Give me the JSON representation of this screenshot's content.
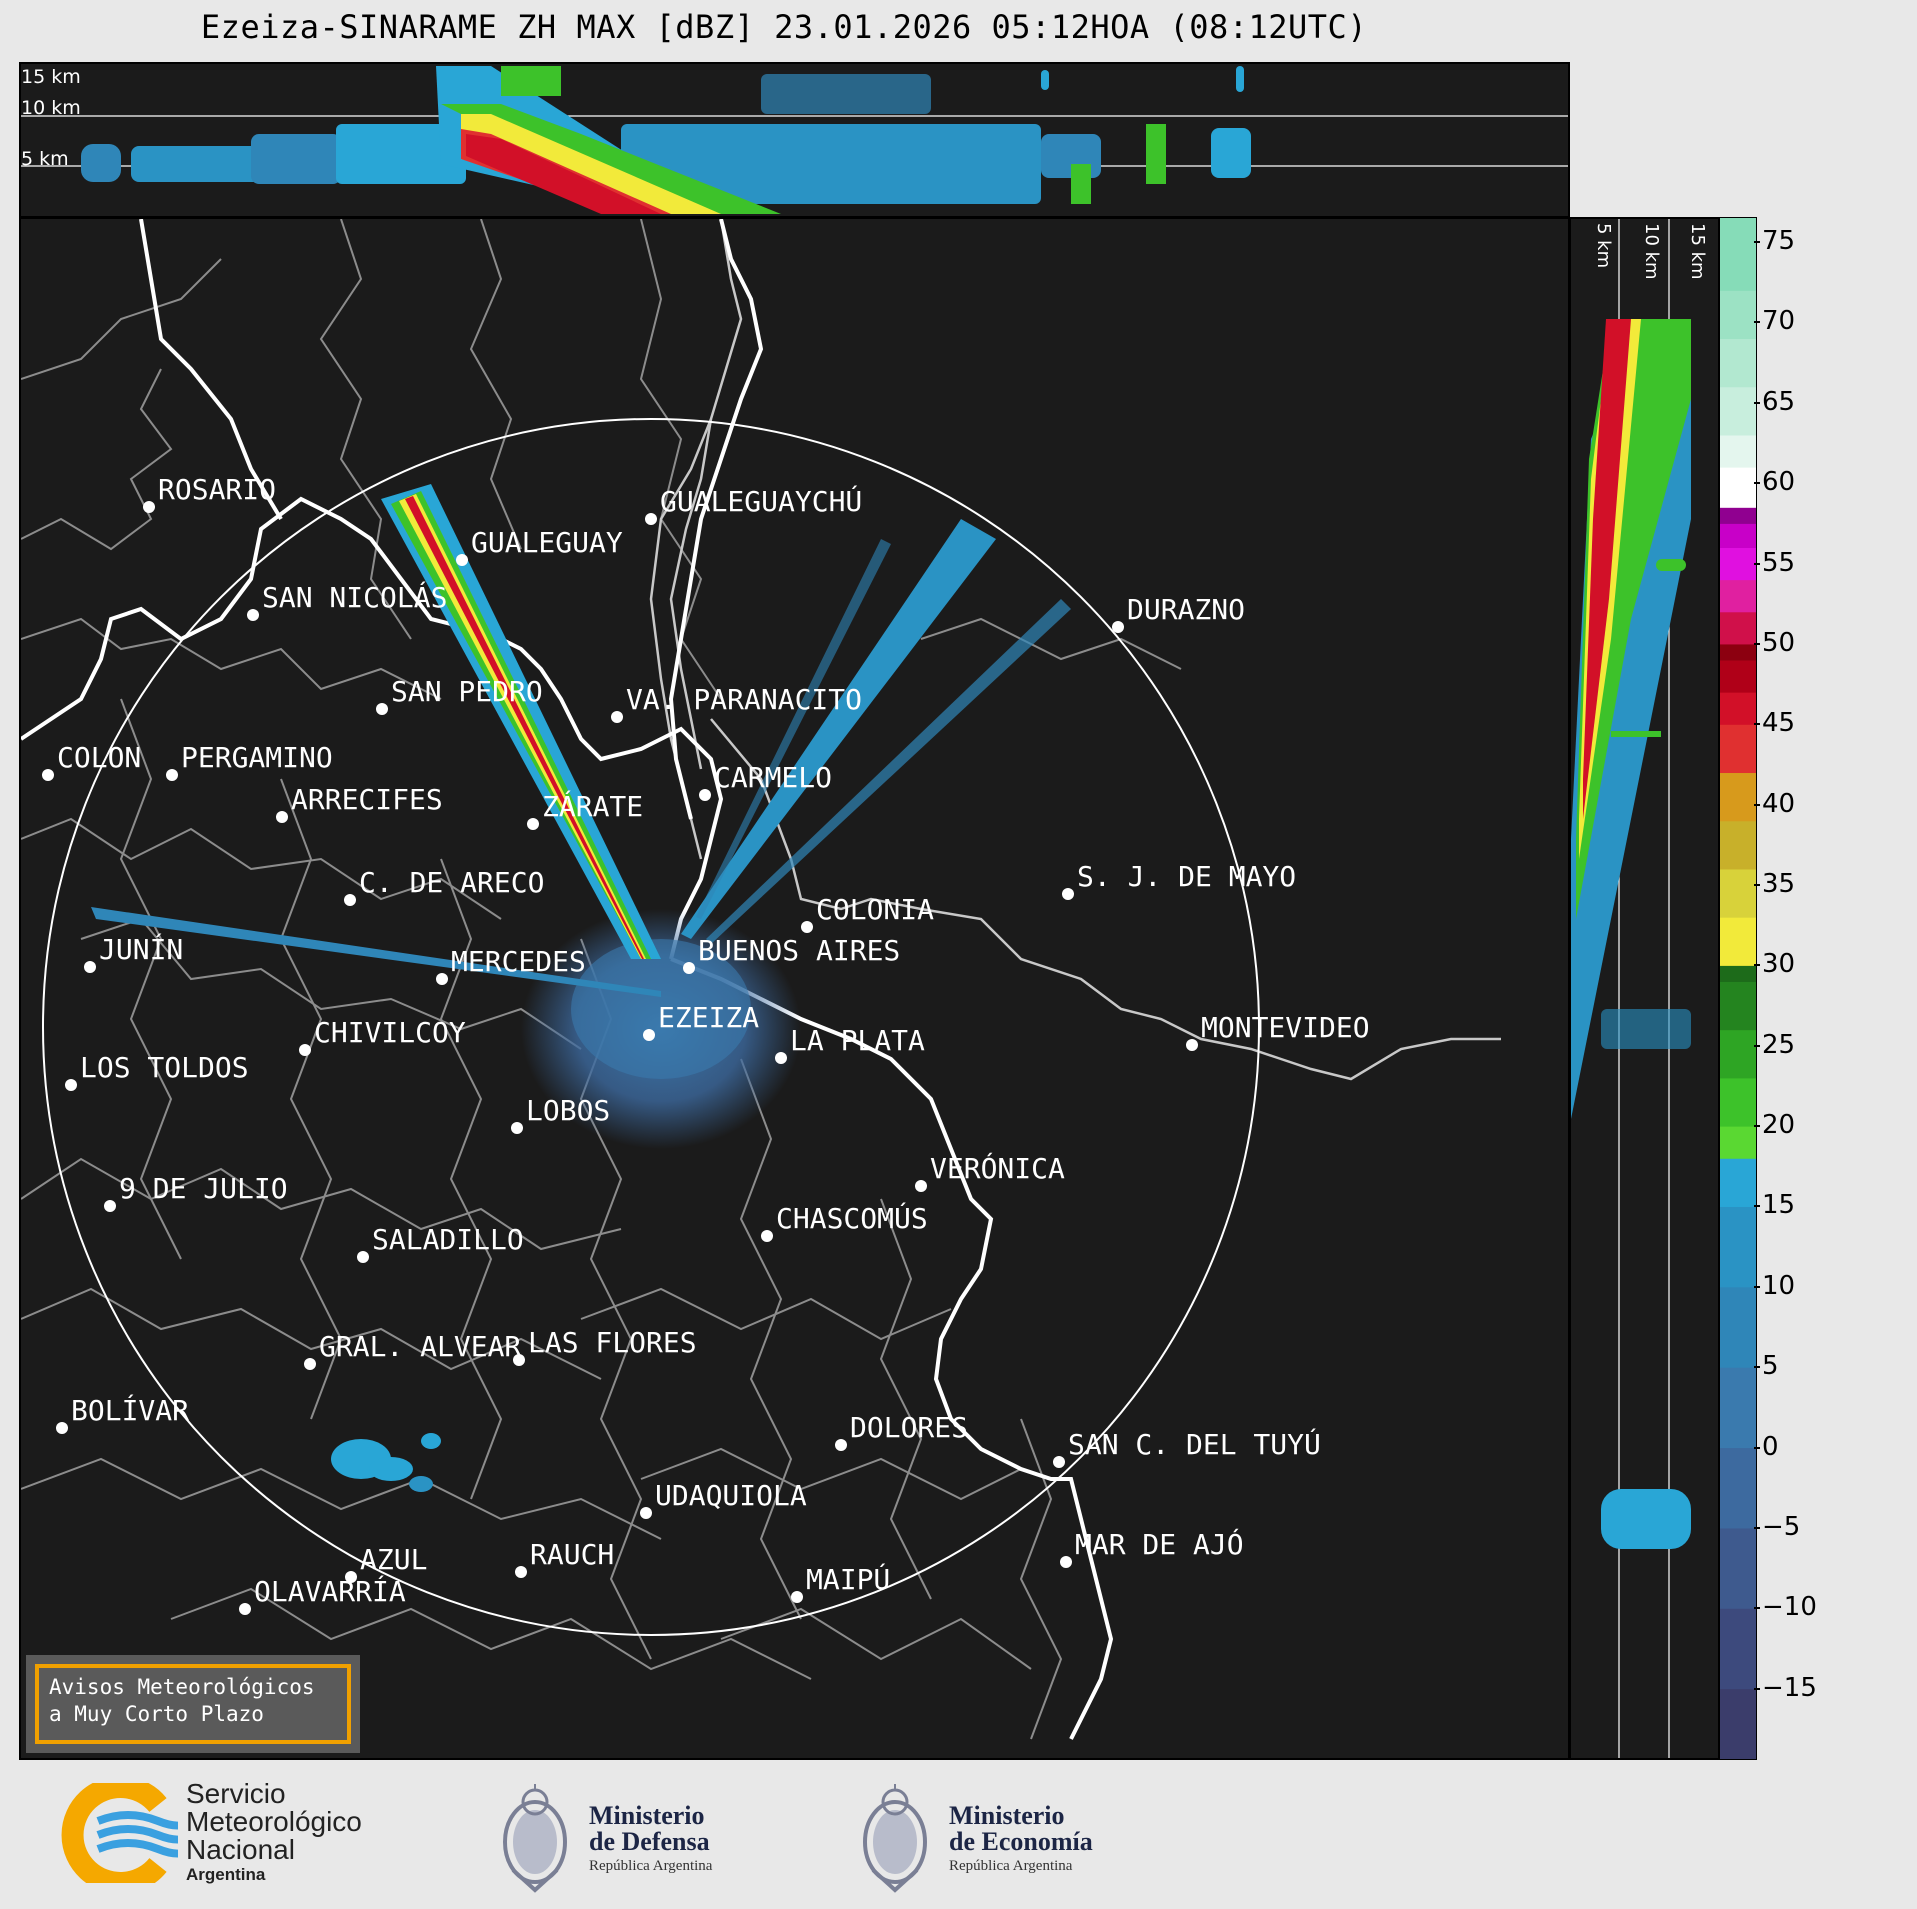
{
  "title": "Ezeiza-SINARAME ZH MAX [dBZ] 23.01.2026 05:12HOA (08:12UTC)",
  "top_panel": {
    "altitude_labels": [
      "15 km",
      "10 km",
      "5 km"
    ]
  },
  "side_panel": {
    "altitude_labels": [
      "5 km",
      "10 km",
      "15 km"
    ]
  },
  "cities": [
    {
      "name": "ROSARIO"
    },
    {
      "name": "GUALEGUAYCHÚ"
    },
    {
      "name": "GUALEGUAY"
    },
    {
      "name": "SAN NICOLÁS"
    },
    {
      "name": "DURAZNO"
    },
    {
      "name": "SAN PEDRO"
    },
    {
      "name": "VA. PARANACITO"
    },
    {
      "name": "COLON"
    },
    {
      "name": "PERGAMINO"
    },
    {
      "name": "ARRECIFES"
    },
    {
      "name": "ZÁRATE"
    },
    {
      "name": "CARMELO"
    },
    {
      "name": "C. DE ARECO"
    },
    {
      "name": "S. J. DE MAYO"
    },
    {
      "name": "COLONIA"
    },
    {
      "name": "JUNÍN"
    },
    {
      "name": "MERCEDES"
    },
    {
      "name": "BUENOS AIRES"
    },
    {
      "name": "EZEIZA"
    },
    {
      "name": "CHIVILCOY"
    },
    {
      "name": "LA PLATA"
    },
    {
      "name": "MONTEVIDEO"
    },
    {
      "name": "LOS TOLDOS"
    },
    {
      "name": "LOBOS"
    },
    {
      "name": "VERÓNICA"
    },
    {
      "name": "9 DE JULIO"
    },
    {
      "name": "CHASCOMÚS"
    },
    {
      "name": "SALADILLO"
    },
    {
      "name": "GRAL. ALVEAR"
    },
    {
      "name": "LAS FLORES"
    },
    {
      "name": "BOLÍVAR"
    },
    {
      "name": "DOLORES"
    },
    {
      "name": "SAN C. DEL TUYÚ"
    },
    {
      "name": "UDAQUIOLA"
    },
    {
      "name": "MAR DE AJÓ"
    },
    {
      "name": "AZUL"
    },
    {
      "name": "RAUCH"
    },
    {
      "name": "MAIPÚ"
    },
    {
      "name": "OLAVARRÍA"
    }
  ],
  "notice": {
    "line1": "Avisos Meteorológicos",
    "line2": "a Muy Corto Plazo"
  },
  "colorbar": {
    "unit": "dBZ",
    "ticks": [
      "75",
      "70",
      "65",
      "60",
      "55",
      "50",
      "45",
      "40",
      "35",
      "30",
      "25",
      "20",
      "15",
      "10",
      "5",
      "0",
      "−5",
      "−10",
      "−15"
    ],
    "min": -19.5,
    "max": 76.5,
    "stops": [
      {
        "from": -19.5,
        "color": "#3b3d6b"
      },
      {
        "from": -15,
        "color": "#3d4a7d"
      },
      {
        "from": -10,
        "color": "#3e5a8e"
      },
      {
        "from": -5,
        "color": "#3d6a9f"
      },
      {
        "from": 0,
        "color": "#3a7aae"
      },
      {
        "from": 5,
        "color": "#2f86b8"
      },
      {
        "from": 10,
        "color": "#2a93c4"
      },
      {
        "from": 15,
        "color": "#29a6d6"
      },
      {
        "from": 18,
        "color": "#5ad832"
      },
      {
        "from": 20,
        "color": "#3dc22a"
      },
      {
        "from": 23,
        "color": "#2ea524"
      },
      {
        "from": 26,
        "color": "#24841f"
      },
      {
        "from": 29,
        "color": "#1d6b1a"
      },
      {
        "from": 30,
        "color": "#f2ea3a"
      },
      {
        "from": 33,
        "color": "#d8d23a"
      },
      {
        "from": 36,
        "color": "#c8b02a"
      },
      {
        "from": 39,
        "color": "#d79a1c"
      },
      {
        "from": 42,
        "color": "#e03030"
      },
      {
        "from": 45,
        "color": "#d21028"
      },
      {
        "from": 47,
        "color": "#b00018"
      },
      {
        "from": 49,
        "color": "#8c0010"
      },
      {
        "from": 50,
        "color": "#d0104a"
      },
      {
        "from": 52,
        "color": "#e020a0"
      },
      {
        "from": 54,
        "color": "#e010e0"
      },
      {
        "from": 56,
        "color": "#c800c8"
      },
      {
        "from": 57.5,
        "color": "#900090"
      },
      {
        "from": 58.5,
        "color": "#ffffff"
      },
      {
        "from": 61,
        "color": "#e4f6ee"
      },
      {
        "from": 63,
        "color": "#c8eedd"
      },
      {
        "from": 66,
        "color": "#b2e8d0"
      },
      {
        "from": 69,
        "color": "#9ce2c4"
      },
      {
        "from": 72,
        "color": "#86dcb8"
      }
    ]
  },
  "footer": {
    "smn": {
      "line1": "Servicio",
      "line2": "Meteorológico",
      "line3": "Nacional",
      "line4": "Argentina"
    },
    "defensa": {
      "line1": "Ministerio",
      "line2": "de Defensa",
      "line3": "República Argentina"
    },
    "economia": {
      "line1": "Ministerio",
      "line2": "de Economía",
      "line3": "República Argentina"
    }
  },
  "colors": {
    "background": "#1b1b1b",
    "coastline": "#ffffff",
    "admin_borders": "#8c8c8c",
    "range_ring": "#ffffff",
    "notice_border": "#f0a000"
  }
}
